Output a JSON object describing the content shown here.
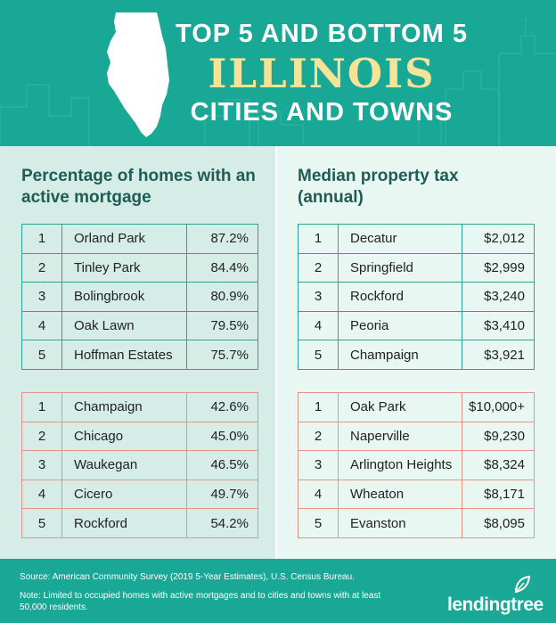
{
  "header": {
    "title_line1": "TOP 5 AND BOTTOM 5",
    "title_line2": "ILLINOIS",
    "title_line3": "CITIES AND TOWNS"
  },
  "left": {
    "heading": "Percentage of homes with an active mortgage",
    "top": [
      {
        "rank": "1",
        "name": "Orland Park",
        "value": "87.2%"
      },
      {
        "rank": "2",
        "name": "Tinley Park",
        "value": "84.4%"
      },
      {
        "rank": "3",
        "name": "Bolingbrook",
        "value": "80.9%"
      },
      {
        "rank": "4",
        "name": "Oak Lawn",
        "value": "79.5%"
      },
      {
        "rank": "5",
        "name": "Hoffman Estates",
        "value": "75.7%"
      }
    ],
    "bottom": [
      {
        "rank": "1",
        "name": "Champaign",
        "value": "42.6%"
      },
      {
        "rank": "2",
        "name": "Chicago",
        "value": "45.0%"
      },
      {
        "rank": "3",
        "name": "Waukegan",
        "value": "46.5%"
      },
      {
        "rank": "4",
        "name": "Cicero",
        "value": "49.7%"
      },
      {
        "rank": "5",
        "name": "Rockford",
        "value": "54.2%"
      }
    ]
  },
  "right": {
    "heading": "Median property tax (annual)",
    "top": [
      {
        "rank": "1",
        "name": "Decatur",
        "value": "$2,012"
      },
      {
        "rank": "2",
        "name": "Springfield",
        "value": "$2,999"
      },
      {
        "rank": "3",
        "name": "Rockford",
        "value": "$3,240"
      },
      {
        "rank": "4",
        "name": "Peoria",
        "value": "$3,410"
      },
      {
        "rank": "5",
        "name": "Champaign",
        "value": "$3,921"
      }
    ],
    "bottom": [
      {
        "rank": "1",
        "name": "Oak Park",
        "value": "$10,000+"
      },
      {
        "rank": "2",
        "name": "Naperville",
        "value": "$9,230"
      },
      {
        "rank": "3",
        "name": "Arlington Heights",
        "value": "$8,324"
      },
      {
        "rank": "4",
        "name": "Wheaton",
        "value": "$8,171"
      },
      {
        "rank": "5",
        "name": "Evanston",
        "value": "$8,095"
      }
    ]
  },
  "footer": {
    "source": "Source: American Community Survey (2019 5-Year Estimates), U.S. Census Bureau.",
    "note": "Note: Limited to occupied homes with active mortgages and to cities and towns with at least 50,000 residents.",
    "logo": "lendingtree"
  },
  "colors": {
    "header_bg": "#1aa896",
    "title_accent": "#f7e398",
    "top_border": "#2aa593",
    "bottom_border": "#e9918b",
    "heading_text": "#1e5c55"
  },
  "icons": {
    "state_outline": "illinois-map-icon",
    "logo_leaf": "leaf-icon"
  }
}
